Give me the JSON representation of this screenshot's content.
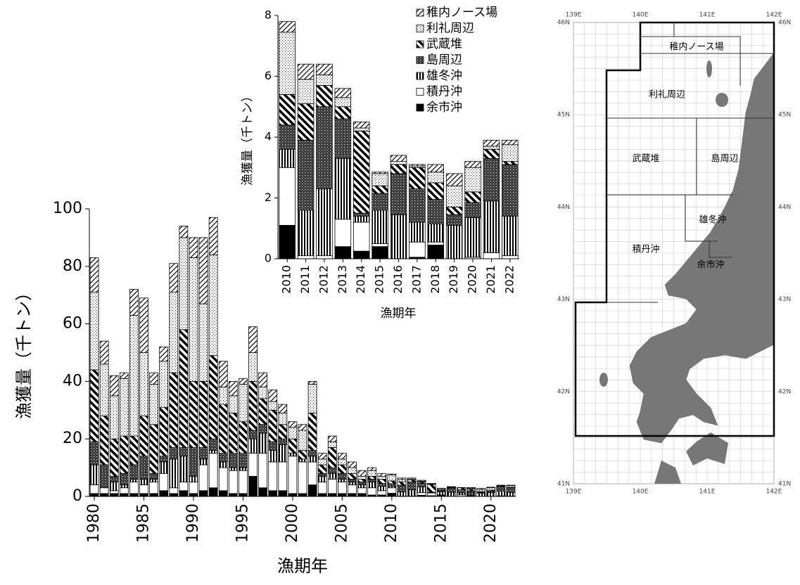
{
  "chart_data": [
    {
      "type": "bar",
      "stacked": true,
      "x_label": "漁期年",
      "y_label": "漁獲量（千トン）",
      "x": [
        1980,
        1981,
        1982,
        1983,
        1984,
        1985,
        1986,
        1987,
        1988,
        1989,
        1990,
        1991,
        1992,
        1993,
        1994,
        1995,
        1996,
        1997,
        1998,
        1999,
        2000,
        2001,
        2002,
        2003,
        2004,
        2005,
        2006,
        2007,
        2008,
        2009,
        2010,
        2011,
        2012,
        2013,
        2014,
        2015,
        2016,
        2017,
        2018,
        2019,
        2020,
        2021,
        2022
      ],
      "xlim": [
        1979.5,
        2022.5
      ],
      "xticks": [
        1980,
        1985,
        1990,
        1995,
        2000,
        2005,
        2010,
        2015,
        2020
      ],
      "ylim": [
        0,
        100
      ],
      "yticks": [
        0,
        20,
        40,
        60,
        80,
        100
      ],
      "series": [
        {
          "name": "余市沖",
          "color": "#000000",
          "pattern": "solid",
          "values": [
            1,
            1,
            1,
            1,
            1,
            1,
            1,
            2,
            1,
            2,
            1,
            2,
            3,
            2,
            1,
            1,
            7,
            3,
            2,
            2,
            1,
            1,
            4,
            1,
            1,
            1,
            1,
            1,
            0.5,
            0.5,
            1.1,
            0,
            0,
            0.4,
            0.25,
            0.4,
            0,
            0.05,
            0.45,
            0,
            0,
            0,
            0
          ]
        },
        {
          "name": "積丹沖",
          "color": "#ffffff",
          "pattern": "white",
          "values": [
            3,
            2,
            1,
            2,
            4,
            3,
            4,
            6,
            2,
            3,
            4,
            9,
            12,
            8,
            8,
            8,
            8,
            12,
            10,
            10,
            13,
            11,
            8,
            4,
            5,
            4,
            3,
            2,
            2.5,
            1.5,
            1.9,
            0.1,
            0.1,
            0.9,
            0.95,
            0.1,
            0,
            0.5,
            0.1,
            0,
            0.05,
            0.2,
            0.1
          ]
        },
        {
          "name": "雄冬沖",
          "color": "#000000",
          "pattern": "vert",
          "values": [
            7,
            0,
            3,
            1,
            1,
            2,
            1,
            4,
            10,
            9,
            2,
            2,
            1,
            2,
            1,
            1,
            5,
            7,
            4,
            6,
            1,
            1,
            2,
            2,
            2,
            1,
            1,
            1,
            2,
            1.5,
            0.6,
            1.5,
            2.2,
            2.0,
            0.2,
            1.1,
            1.45,
            0.65,
            0.6,
            1.1,
            1.3,
            1.7,
            1.3
          ]
        },
        {
          "name": "島周辺",
          "color": "#222222",
          "pattern": "cross",
          "values": [
            8,
            8,
            2,
            4,
            5,
            8,
            2,
            2,
            4,
            3,
            10,
            4,
            4,
            3,
            5,
            5,
            3,
            3,
            3,
            2,
            0,
            0,
            2,
            1,
            2,
            2,
            1,
            1,
            1,
            1,
            0.8,
            2.3,
            2.7,
            1.3,
            0.1,
            0.55,
            1.35,
            1.1,
            0.8,
            0.35,
            0.5,
            1.4,
            1.7
          ]
        },
        {
          "name": "武蔵堆",
          "color": "#000000",
          "pattern": "back",
          "values": [
            25,
            17,
            13,
            13,
            10,
            14,
            17,
            17,
            26,
            41,
            23,
            23,
            29,
            17,
            14,
            11,
            17,
            9,
            11,
            5,
            5,
            3,
            13,
            3,
            7,
            3,
            2,
            1,
            1,
            1.5,
            1.0,
            1.2,
            0.7,
            0.4,
            2.7,
            0.25,
            0.3,
            0.7,
            0.55,
            0.25,
            0.35,
            0.3,
            0.1
          ]
        },
        {
          "name": "利礼周辺",
          "color": "#000000",
          "pattern": "dots",
          "values": [
            27,
            18,
            15,
            20,
            42,
            22,
            14,
            16,
            28,
            32,
            43,
            27,
            35,
            6,
            6,
            13,
            10,
            4,
            3,
            4,
            4,
            7,
            10,
            2,
            2,
            2,
            2,
            1,
            2,
            1,
            2.05,
            0.8,
            0.35,
            0.3,
            0.1,
            0.4,
            0.1,
            0.05,
            0.35,
            0.7,
            0.8,
            0.1,
            0.55
          ]
        },
        {
          "name": "稚内ノース場",
          "color": "#000000",
          "pattern": "hatch",
          "values": [
            12,
            8,
            7,
            2,
            9,
            19,
            4,
            5,
            10,
            4,
            7,
            23,
            13,
            9,
            5,
            2,
            9,
            5,
            4,
            3,
            2,
            2,
            1,
            2,
            2,
            2,
            2,
            2,
            1,
            1,
            0.35,
            0.5,
            0.35,
            0.3,
            0.2,
            0.05,
            0.2,
            0.05,
            0.25,
            0.4,
            0.2,
            0.2,
            0.15
          ]
        }
      ]
    },
    {
      "type": "bar",
      "stacked": true,
      "x_label": "漁期年",
      "y_label": "漁獲量（千トン）",
      "legend": "top-right",
      "x": [
        2010,
        2011,
        2012,
        2013,
        2014,
        2015,
        2016,
        2017,
        2018,
        2019,
        2020,
        2021,
        2022
      ],
      "xlim": [
        2009.5,
        2022.5
      ],
      "xticks": [
        2010,
        2011,
        2012,
        2013,
        2014,
        2015,
        2016,
        2017,
        2018,
        2019,
        2020,
        2021,
        2022
      ],
      "ylim": [
        0,
        8
      ],
      "yticks": [
        0,
        2,
        4,
        6,
        8
      ],
      "series": [
        {
          "name": "余市沖",
          "color": "#000000",
          "pattern": "solid",
          "values": [
            1.1,
            0,
            0,
            0.4,
            0.25,
            0.4,
            0,
            0.05,
            0.45,
            0,
            0,
            0,
            0
          ]
        },
        {
          "name": "積丹沖",
          "color": "#ffffff",
          "pattern": "white",
          "values": [
            1.9,
            0.1,
            0.1,
            0.9,
            0.95,
            0.1,
            0,
            0.5,
            0.1,
            0,
            0.05,
            0.2,
            0.1
          ]
        },
        {
          "name": "雄冬沖",
          "color": "#000000",
          "pattern": "vert",
          "values": [
            0.6,
            1.5,
            2.2,
            2.0,
            0.2,
            1.1,
            1.45,
            0.65,
            0.6,
            1.1,
            1.3,
            1.7,
            1.3
          ]
        },
        {
          "name": "島周辺",
          "color": "#222222",
          "pattern": "cross",
          "values": [
            0.8,
            2.3,
            2.7,
            1.3,
            0.1,
            0.55,
            1.35,
            1.1,
            0.8,
            0.35,
            0.5,
            1.4,
            1.7
          ]
        },
        {
          "name": "武蔵堆",
          "color": "#000000",
          "pattern": "back",
          "values": [
            1.0,
            1.2,
            0.7,
            0.4,
            2.7,
            0.25,
            0.3,
            0.7,
            0.55,
            0.25,
            0.35,
            0.3,
            0.1
          ]
        },
        {
          "name": "利礼周辺",
          "color": "#000000",
          "pattern": "dots",
          "values": [
            2.05,
            0.8,
            0.35,
            0.3,
            0.1,
            0.4,
            0.1,
            0.05,
            0.35,
            0.7,
            0.8,
            0.1,
            0.55
          ]
        },
        {
          "name": "稚内ノース場",
          "color": "#000000",
          "pattern": "hatch",
          "values": [
            0.35,
            0.5,
            0.35,
            0.3,
            0.2,
            0.05,
            0.2,
            0.05,
            0.25,
            0.4,
            0.2,
            0.2,
            0.15
          ]
        }
      ]
    }
  ],
  "map": {
    "regions": [
      "稚内ノース場",
      "利礼周辺",
      "武蔵堆",
      "島周辺",
      "雄冬沖",
      "積丹沖",
      "余市沖"
    ],
    "lon_labels": [
      "139E",
      "140E",
      "141E",
      "142E"
    ],
    "lat_labels": [
      "46N",
      "45N",
      "44N",
      "43N",
      "42N",
      "41N"
    ]
  }
}
